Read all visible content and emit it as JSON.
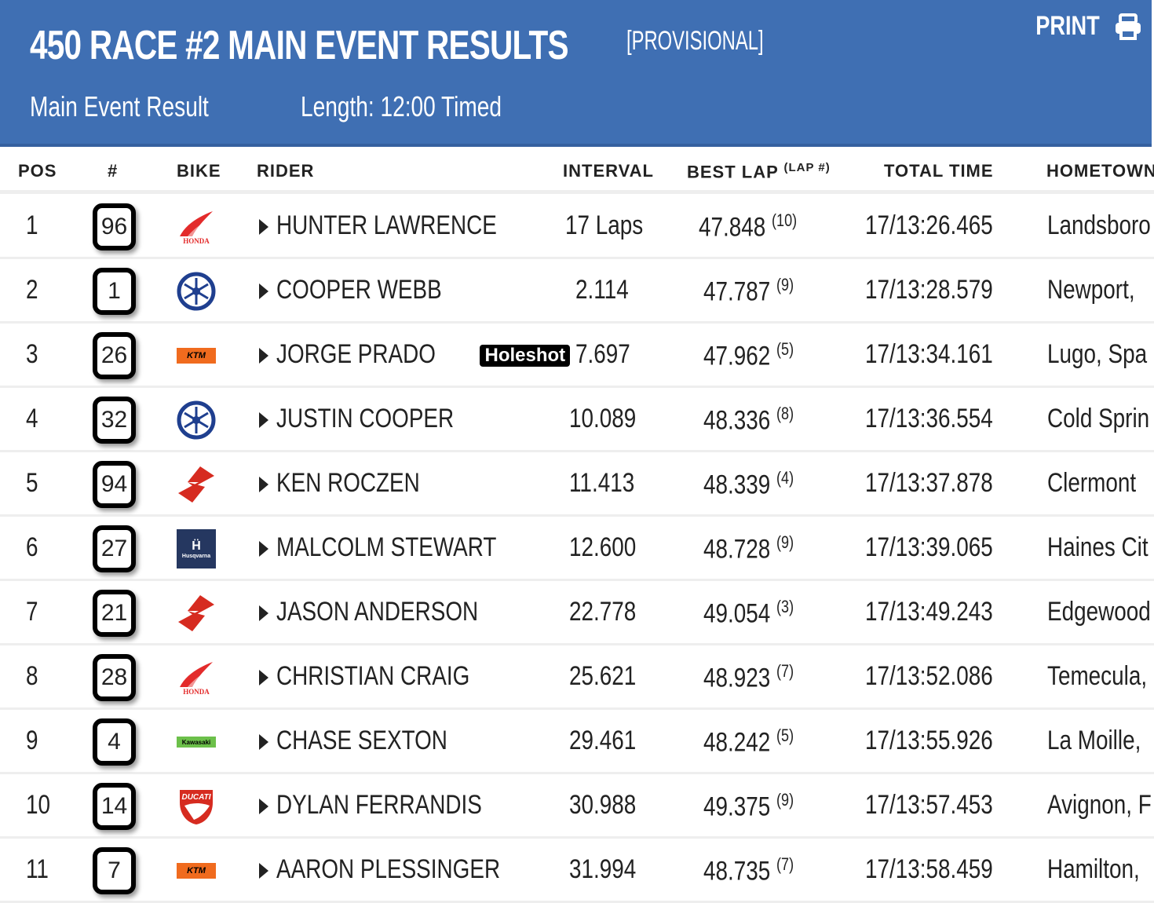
{
  "header": {
    "title": "450 RACE #2 MAIN EVENT RESULTS",
    "status": "[PROVISIONAL]",
    "subtitle": "Main Event Result",
    "length": "Length: 12:00 Timed",
    "print_label": "PRINT"
  },
  "columns": {
    "pos": "POS",
    "num": "#",
    "bike": "BIKE",
    "rider": "RIDER",
    "interval": "INTERVAL",
    "best_lap": "BEST LAP",
    "lap_num": "(LAP #)",
    "total_time": "TOTAL TIME",
    "hometown": "HOMETOWN"
  },
  "badge_holeshot": "Holeshot",
  "brands": {
    "honda": "HONDA",
    "ktm": "KTM",
    "kawasaki": "Kawasaki",
    "ducati": "DUCATI",
    "husqvarna": "Husqvarna"
  },
  "rows": [
    {
      "pos": "1",
      "num": "96",
      "bike": "honda",
      "rider": "HUNTER LAWRENCE",
      "interval": "17 Laps",
      "best": "47.848",
      "lap": "(10)",
      "total": "17/13:26.465",
      "hometown": "Landsboro"
    },
    {
      "pos": "2",
      "num": "1",
      "bike": "yamaha",
      "rider": "COOPER WEBB",
      "interval": "2.114",
      "best": "47.787",
      "lap": "(9)",
      "total": "17/13:28.579",
      "hometown": "Newport,"
    },
    {
      "pos": "3",
      "num": "26",
      "bike": "ktm",
      "rider": "JORGE PRADO",
      "holeshot": true,
      "interval": "7.697",
      "best": "47.962",
      "lap": "(5)",
      "total": "17/13:34.161",
      "hometown": "Lugo, Spa"
    },
    {
      "pos": "4",
      "num": "32",
      "bike": "yamaha",
      "rider": "JUSTIN COOPER",
      "interval": "10.089",
      "best": "48.336",
      "lap": "(8)",
      "total": "17/13:36.554",
      "hometown": "Cold Sprin"
    },
    {
      "pos": "5",
      "num": "94",
      "bike": "suzuki",
      "rider": "KEN ROCZEN",
      "interval": "11.413",
      "best": "48.339",
      "lap": "(4)",
      "total": "17/13:37.878",
      "hometown": "Clermont"
    },
    {
      "pos": "6",
      "num": "27",
      "bike": "husqvarna",
      "rider": "MALCOLM STEWART",
      "interval": "12.600",
      "best": "48.728",
      "lap": "(9)",
      "total": "17/13:39.065",
      "hometown": "Haines Cit"
    },
    {
      "pos": "7",
      "num": "21",
      "bike": "suzuki",
      "rider": "JASON ANDERSON",
      "interval": "22.778",
      "best": "49.054",
      "lap": "(3)",
      "total": "17/13:49.243",
      "hometown": "Edgewood"
    },
    {
      "pos": "8",
      "num": "28",
      "bike": "honda",
      "rider": "CHRISTIAN CRAIG",
      "interval": "25.621",
      "best": "48.923",
      "lap": "(7)",
      "total": "17/13:52.086",
      "hometown": "Temecula,"
    },
    {
      "pos": "9",
      "num": "4",
      "bike": "kawasaki",
      "rider": "CHASE SEXTON",
      "interval": "29.461",
      "best": "48.242",
      "lap": "(5)",
      "total": "17/13:55.926",
      "hometown": "La Moille,"
    },
    {
      "pos": "10",
      "num": "14",
      "bike": "ducati",
      "rider": "DYLAN FERRANDIS",
      "interval": "30.988",
      "best": "49.375",
      "lap": "(9)",
      "total": "17/13:57.453",
      "hometown": "Avignon, F"
    },
    {
      "pos": "11",
      "num": "7",
      "bike": "ktm",
      "rider": "AARON PLESSINGER",
      "interval": "31.994",
      "best": "48.735",
      "lap": "(7)",
      "total": "17/13:58.459",
      "hometown": "Hamilton,"
    }
  ]
}
